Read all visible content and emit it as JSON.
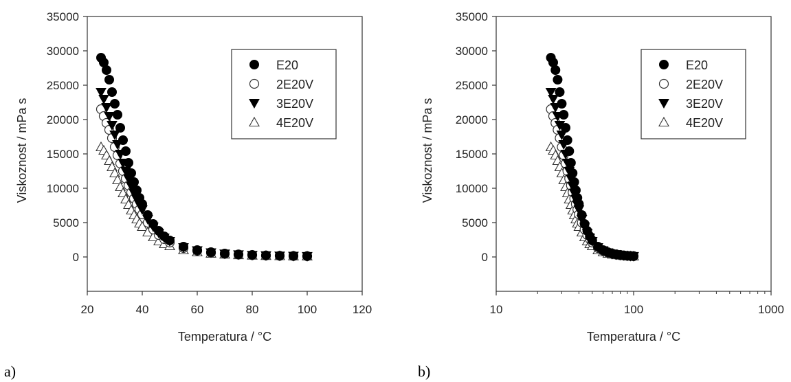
{
  "chart_data": [
    {
      "panel_label": "a)",
      "type": "scatter",
      "x_scale": "linear",
      "xlabel": "Temperatura / °C",
      "ylabel": "Viskoznost / mPa s",
      "xlim": [
        20,
        120
      ],
      "ylim": [
        -5000,
        35000
      ],
      "xticks": [
        "20",
        "40",
        "60",
        "80",
        "100",
        "120"
      ],
      "yticks": [
        "0",
        "5000",
        "10000",
        "15000",
        "20000",
        "25000",
        "30000",
        "35000"
      ],
      "legend_position": "top-right",
      "series": [
        {
          "name": "E20",
          "marker": "filled-circle",
          "x": [
            25,
            26,
            27,
            28,
            29,
            30,
            31,
            32,
            33,
            34,
            35,
            36,
            37,
            38,
            39,
            40,
            42,
            44,
            46,
            48,
            50,
            55,
            60,
            65,
            70,
            75,
            80,
            85,
            90,
            95,
            100
          ],
          "y": [
            29000,
            28300,
            27200,
            25800,
            24000,
            22300,
            20700,
            18800,
            17000,
            15400,
            13700,
            12200,
            10900,
            9700,
            8600,
            7700,
            6100,
            4800,
            3800,
            3000,
            2400,
            1500,
            1000,
            700,
            500,
            380,
            300,
            230,
            180,
            150,
            120
          ]
        },
        {
          "name": "2E20V",
          "marker": "open-circle",
          "x": [
            25,
            26,
            27,
            28,
            29,
            30,
            31,
            32,
            33,
            34,
            35,
            36,
            37,
            38,
            39,
            40,
            42,
            44,
            46,
            48,
            50,
            55,
            60,
            65,
            70,
            75,
            80,
            85,
            90,
            95,
            100
          ],
          "y": [
            21500,
            20500,
            19500,
            18500,
            17300,
            16000,
            14800,
            13600,
            12500,
            11400,
            10400,
            9400,
            8500,
            7700,
            6900,
            6200,
            5000,
            4000,
            3200,
            2600,
            2100,
            1300,
            900,
            600,
            450,
            340,
            270,
            210,
            170,
            140,
            110
          ]
        },
        {
          "name": "3E20V",
          "marker": "filled-triangle-down",
          "x": [
            25,
            26,
            27,
            28,
            29,
            30,
            31,
            32,
            33,
            34,
            35,
            36,
            37,
            38,
            39,
            40,
            42,
            44,
            46,
            48,
            50,
            55,
            60,
            65,
            70,
            75,
            80,
            85,
            90,
            95,
            100
          ],
          "y": [
            24000,
            23000,
            21800,
            20500,
            19200,
            17800,
            16400,
            15000,
            13700,
            12500,
            11400,
            10300,
            9300,
            8400,
            7600,
            6900,
            5500,
            4400,
            3500,
            2800,
            2300,
            1400,
            950,
            650,
            480,
            360,
            280,
            220,
            175,
            145,
            115
          ]
        },
        {
          "name": "4E20V",
          "marker": "open-triangle-up",
          "x": [
            25,
            26,
            27,
            28,
            29,
            30,
            31,
            32,
            33,
            34,
            35,
            36,
            37,
            38,
            39,
            40,
            42,
            44,
            46,
            48,
            50,
            55,
            60,
            65,
            70,
            75,
            80,
            85,
            90,
            95,
            100
          ],
          "y": [
            16000,
            15500,
            14800,
            14000,
            13100,
            12200,
            11200,
            10200,
            9300,
            8400,
            7600,
            6800,
            6100,
            5500,
            4900,
            4400,
            3600,
            2900,
            2300,
            1900,
            1600,
            1000,
            700,
            500,
            380,
            290,
            230,
            180,
            150,
            120,
            100
          ]
        }
      ]
    },
    {
      "panel_label": "b)",
      "type": "scatter",
      "x_scale": "log",
      "xlabel": "Temperatura / °C",
      "ylabel": "Viskoznost / mPa s",
      "xlim": [
        10,
        1000
      ],
      "ylim": [
        -5000,
        35000
      ],
      "xticks": [
        "10",
        "100",
        "1000"
      ],
      "yticks": [
        "0",
        "5000",
        "10000",
        "15000",
        "20000",
        "25000",
        "30000",
        "35000"
      ],
      "legend_position": "top-right",
      "series": [
        {
          "name": "E20",
          "marker": "filled-circle",
          "x": [
            25,
            26,
            27,
            28,
            29,
            30,
            31,
            32,
            33,
            34,
            35,
            36,
            37,
            38,
            39,
            40,
            42,
            44,
            46,
            48,
            50,
            55,
            60,
            65,
            70,
            75,
            80,
            85,
            90,
            95,
            100
          ],
          "y": [
            29000,
            28300,
            27200,
            25800,
            24000,
            22300,
            20700,
            18800,
            17000,
            15400,
            13700,
            12200,
            10900,
            9700,
            8600,
            7700,
            6100,
            4800,
            3800,
            3000,
            2400,
            1500,
            1000,
            700,
            500,
            380,
            300,
            230,
            180,
            150,
            120
          ]
        },
        {
          "name": "2E20V",
          "marker": "open-circle",
          "x": [
            25,
            26,
            27,
            28,
            29,
            30,
            31,
            32,
            33,
            34,
            35,
            36,
            37,
            38,
            39,
            40,
            42,
            44,
            46,
            48,
            50,
            55,
            60,
            65,
            70,
            75,
            80,
            85,
            90,
            95,
            100
          ],
          "y": [
            21500,
            20500,
            19500,
            18500,
            17300,
            16000,
            14800,
            13600,
            12500,
            11400,
            10400,
            9400,
            8500,
            7700,
            6900,
            6200,
            5000,
            4000,
            3200,
            2600,
            2100,
            1300,
            900,
            600,
            450,
            340,
            270,
            210,
            170,
            140,
            110
          ]
        },
        {
          "name": "3E20V",
          "marker": "filled-triangle-down",
          "x": [
            25,
            26,
            27,
            28,
            29,
            30,
            31,
            32,
            33,
            34,
            35,
            36,
            37,
            38,
            39,
            40,
            42,
            44,
            46,
            48,
            50,
            55,
            60,
            65,
            70,
            75,
            80,
            85,
            90,
            95,
            100
          ],
          "y": [
            24000,
            23000,
            21800,
            20500,
            19200,
            17800,
            16400,
            15000,
            13700,
            12500,
            11400,
            10300,
            9300,
            8400,
            7600,
            6900,
            5500,
            4400,
            3500,
            2800,
            2300,
            1400,
            950,
            650,
            480,
            360,
            280,
            220,
            175,
            145,
            115
          ]
        },
        {
          "name": "4E20V",
          "marker": "open-triangle-up",
          "x": [
            25,
            26,
            27,
            28,
            29,
            30,
            31,
            32,
            33,
            34,
            35,
            36,
            37,
            38,
            39,
            40,
            42,
            44,
            46,
            48,
            50,
            55,
            60,
            65,
            70,
            75,
            80,
            85,
            90,
            95,
            100
          ],
          "y": [
            16000,
            15500,
            14800,
            14000,
            13100,
            12200,
            11200,
            10200,
            9300,
            8400,
            7600,
            6800,
            6100,
            5500,
            4900,
            4400,
            3600,
            2900,
            2300,
            1900,
            1600,
            1000,
            700,
            500,
            380,
            290,
            230,
            180,
            150,
            120,
            100
          ]
        }
      ]
    }
  ]
}
